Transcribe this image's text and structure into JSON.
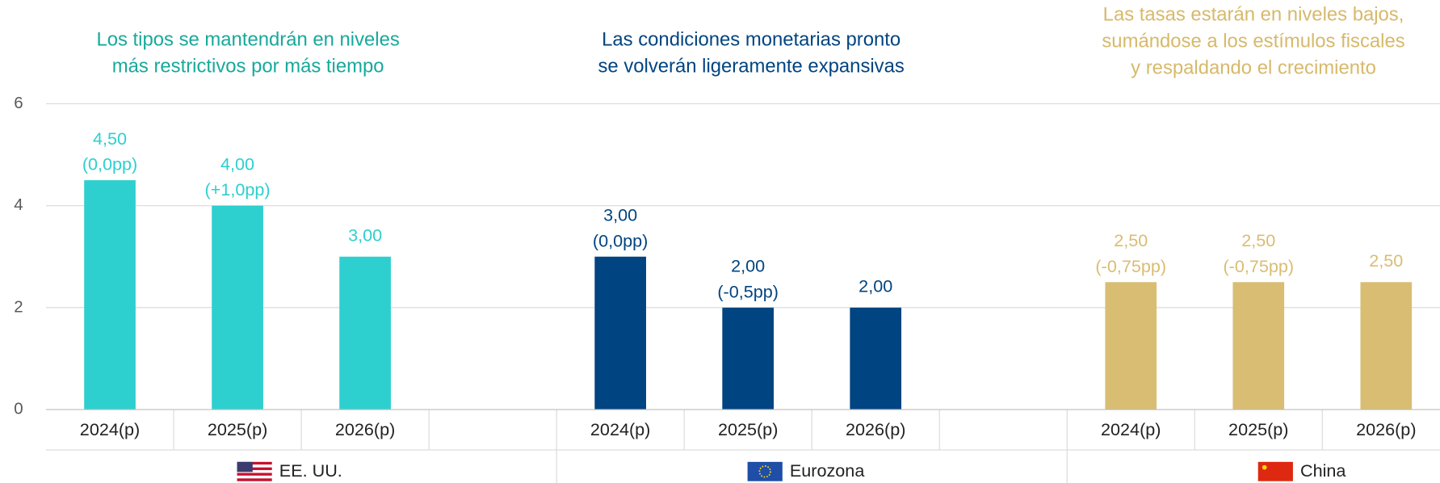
{
  "chart_data": {
    "type": "bar",
    "ylim": [
      0,
      6
    ],
    "yticks": [
      0,
      2,
      4,
      6
    ],
    "grid": true,
    "groups": [
      {
        "name": "EE. UU.",
        "color": "#2ecfcf",
        "subtitle_color": "#17a99b",
        "subtitle": [
          "Los tipos se mantendrán en niveles",
          "más restrictivos por más tiempo"
        ],
        "categories": [
          "2024(p)",
          "2025(p)",
          "2026(p)"
        ],
        "values": [
          4.5,
          4.0,
          3.0
        ],
        "value_labels": [
          "4,50",
          "4,00",
          "3,00"
        ],
        "changes": [
          "(0,0pp)",
          "(+1,0pp)",
          null
        ]
      },
      {
        "name": "Eurozona",
        "color": "#004481",
        "subtitle_color": "#004481",
        "subtitle": [
          "Las condiciones monetarias pronto",
          "se volverán ligeramente expansivas"
        ],
        "categories": [
          "2024(p)",
          "2025(p)",
          "2026(p)"
        ],
        "values": [
          3.0,
          2.0,
          2.0
        ],
        "value_labels": [
          "3,00",
          "2,00",
          "2,00"
        ],
        "changes": [
          "(0,0pp)",
          "(-0,5pp)",
          null
        ]
      },
      {
        "name": "China",
        "color": "#d9bd72",
        "subtitle_color": "#d7b96b",
        "subtitle": [
          "Las tasas estarán en niveles bajos,",
          "sumándose a los estímulos fiscales",
          "y respaldando el crecimiento"
        ],
        "categories": [
          "2024(p)",
          "2025(p)",
          "2026(p)"
        ],
        "values": [
          2.5,
          2.5,
          2.5
        ],
        "value_labels": [
          "2,50",
          "2,50",
          "2,50"
        ],
        "changes": [
          "(-0,75pp)",
          "(-0,75pp)",
          null
        ]
      }
    ]
  }
}
